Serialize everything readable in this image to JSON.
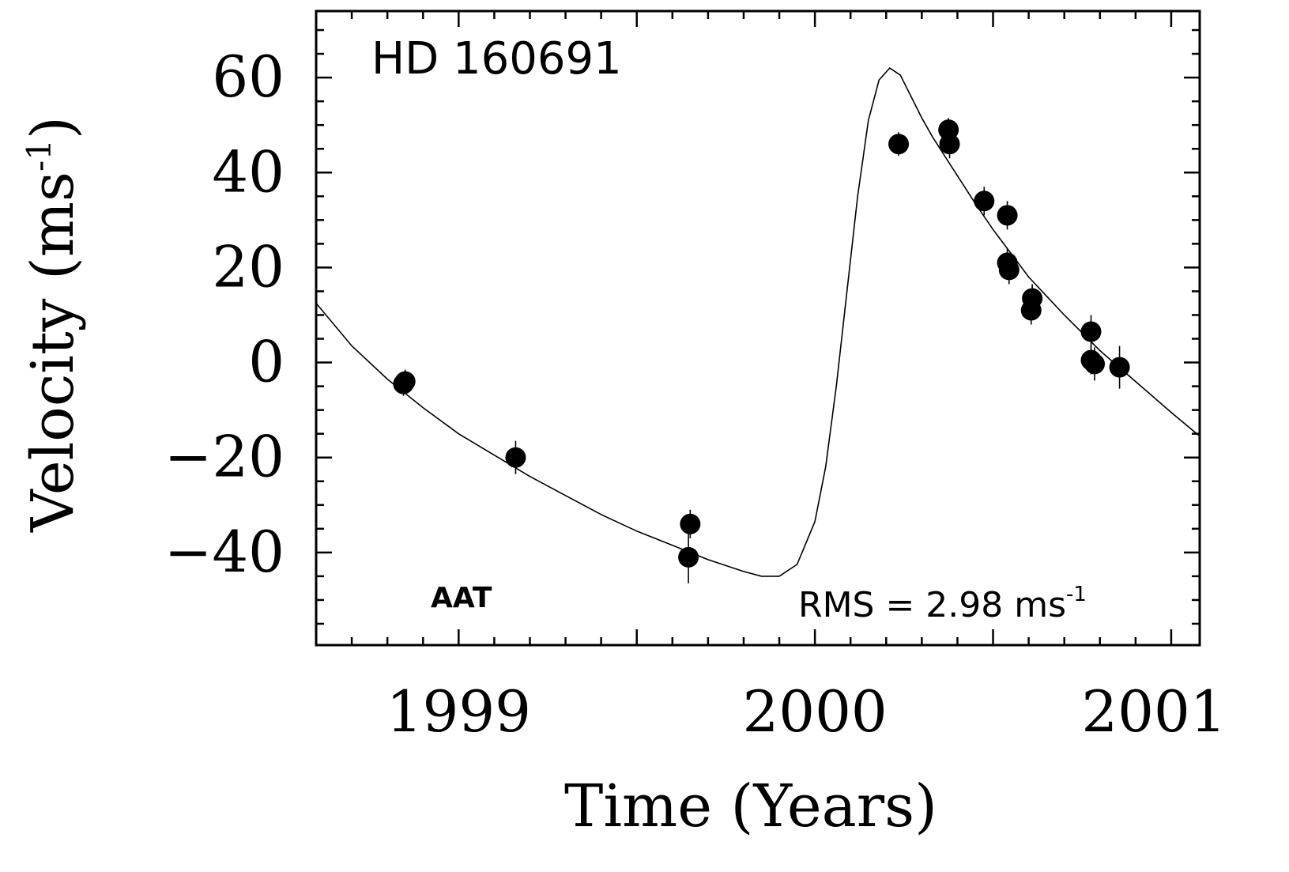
{
  "chart_data": {
    "type": "scatter",
    "star_label": "HD 160691",
    "instrument_label": "AAT",
    "rms_label": "RMS = 2.98 ms",
    "rms_superscript": "-1",
    "xlabel": "Time (Years)",
    "ylabel": "Velocity (ms",
    "ylabel_superscript": "-1",
    "ylabel_close": ")",
    "xlim": [
      1998.6,
      2001.08
    ],
    "ylim": [
      -59.5,
      74.0
    ],
    "x_tick_labels": [
      "1999",
      "2000",
      "2001"
    ],
    "x_ticks": [
      1999,
      2000,
      2001
    ],
    "y_ticks": [
      60,
      40,
      20,
      0,
      -20,
      -40
    ],
    "y_tick_labels": [
      "60",
      "40",
      "20",
      "0",
      "−20",
      "−40"
    ],
    "grid": false,
    "series": [
      {
        "points": [
          {
            "x": 1998.845,
            "y": -4.5,
            "err": 2.5
          },
          {
            "x": 1998.85,
            "y": -4.0,
            "err": 2.5
          },
          {
            "x": 1999.16,
            "y": -20.0,
            "err": 3.5
          },
          {
            "x": 1999.65,
            "y": -34.0,
            "err": 3.0
          },
          {
            "x": 1999.645,
            "y": -41.0,
            "err": 5.5
          },
          {
            "x": 2000.235,
            "y": 46.0,
            "err": 2.5
          },
          {
            "x": 2000.375,
            "y": 49.0,
            "err": 2.5
          },
          {
            "x": 2000.378,
            "y": 46.0,
            "err": 3.0
          },
          {
            "x": 2000.475,
            "y": 34.0,
            "err": 3.0
          },
          {
            "x": 2000.54,
            "y": 31.0,
            "err": 3.0
          },
          {
            "x": 2000.54,
            "y": 21.0,
            "err": 3.0
          },
          {
            "x": 2000.545,
            "y": 19.5,
            "err": 3.0
          },
          {
            "x": 2000.61,
            "y": 13.5,
            "err": 3.0
          },
          {
            "x": 2000.607,
            "y": 11.0,
            "err": 3.0
          },
          {
            "x": 2000.775,
            "y": 6.5,
            "err": 3.5
          },
          {
            "x": 2000.775,
            "y": 0.5,
            "err": 3.0
          },
          {
            "x": 2000.785,
            "y": -0.3,
            "err": 3.5
          },
          {
            "x": 2000.855,
            "y": -1.0,
            "err": 4.5
          }
        ]
      }
    ],
    "model_curve": {
      "x": [
        1998.6,
        1998.7,
        1998.8,
        1998.9,
        1999.0,
        1999.1,
        1999.2,
        1999.3,
        1999.4,
        1999.5,
        1999.6,
        1999.7,
        1999.8,
        1999.85,
        1999.9,
        1999.95,
        2000.0,
        2000.03,
        2000.06,
        2000.09,
        2000.12,
        2000.15,
        2000.18,
        2000.21,
        2000.24,
        2000.27,
        2000.3,
        2000.33,
        2000.36,
        2000.39,
        2000.42,
        2000.45,
        2000.5,
        2000.55,
        2000.6,
        2000.7,
        2000.8,
        2000.9,
        2001.0,
        2001.08
      ],
      "y": [
        12.5,
        3.5,
        -3.5,
        -9.5,
        -15.0,
        -19.5,
        -24.0,
        -28.0,
        -32.0,
        -35.5,
        -38.5,
        -41.5,
        -44.0,
        -45.0,
        -45.0,
        -42.5,
        -33.5,
        -22.0,
        -5.0,
        15.0,
        35.0,
        51.0,
        59.5,
        62.0,
        60.5,
        56.0,
        51.5,
        47.5,
        44.0,
        40.5,
        37.0,
        33.5,
        28.0,
        23.0,
        18.0,
        10.0,
        2.5,
        -4.0,
        -10.5,
        -15.5
      ]
    }
  }
}
